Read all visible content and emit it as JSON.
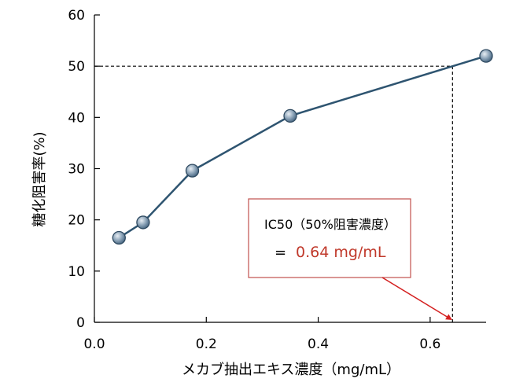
{
  "chart_data": {
    "type": "line",
    "xlabel": "メカブ抽出エキス濃度（mg/mL）",
    "ylabel": "糖化阻害率(%)",
    "xlim": [
      0.0,
      0.7
    ],
    "ylim": [
      0,
      60
    ],
    "x_ticks": [
      "0.0",
      "0.2",
      "0.4",
      "0.6"
    ],
    "x_tick_values": [
      0.0,
      0.2,
      0.4,
      0.6
    ],
    "y_ticks": [
      "0",
      "10",
      "20",
      "30",
      "40",
      "50",
      "60"
    ],
    "y_tick_values": [
      0,
      10,
      20,
      30,
      40,
      50,
      60
    ],
    "grid": false,
    "series": [
      {
        "points": [
          {
            "x": 0.044,
            "y": 16.5
          },
          {
            "x": 0.087,
            "y": 19.5
          },
          {
            "x": 0.175,
            "y": 29.6
          },
          {
            "x": 0.35,
            "y": 40.3
          },
          {
            "x": 0.7,
            "y": 52.0
          }
        ],
        "line_color": "#2e5470",
        "marker_color": "#8fa6ba"
      }
    ],
    "reference": {
      "x": 0.64,
      "y": 50
    },
    "annotation": {
      "line1": "IC50（50%阻害濃度）",
      "equals": "=",
      "value": "0.64 mg/mL",
      "value_color": "#c0392b",
      "box_color": "#c0504d"
    }
  }
}
